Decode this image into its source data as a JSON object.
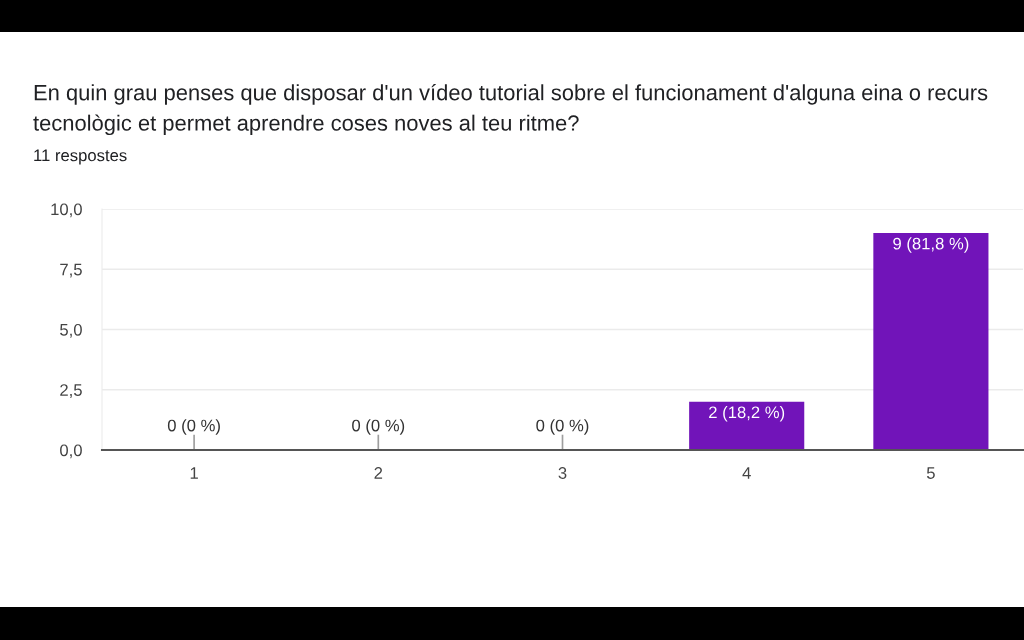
{
  "chart_data": {
    "type": "bar",
    "title": "En quin grau penses que disposar d'un vídeo tutorial sobre el funcionament d'alguna eina o recurs\ntecnològic et permet aprendre coses noves al teu ritme?",
    "subtitle": "11 respostes",
    "categories": [
      "1",
      "2",
      "3",
      "4",
      "5"
    ],
    "values": [
      0,
      0,
      0,
      2,
      9
    ],
    "value_labels": [
      "0 (0 %)",
      "0 (0 %)",
      "0 (0 %)",
      "2 (18,2 %)",
      "9 (81,8 %)"
    ],
    "color": "#7114b9",
    "ylim": [
      0,
      10
    ],
    "yticks": [
      {
        "value": 0,
        "label": "0,0"
      },
      {
        "value": 2.5,
        "label": "2,5"
      },
      {
        "value": 5,
        "label": "5,0"
      },
      {
        "value": 7.5,
        "label": "7,5"
      },
      {
        "value": 10,
        "label": "10,0"
      }
    ],
    "grid": "y"
  }
}
